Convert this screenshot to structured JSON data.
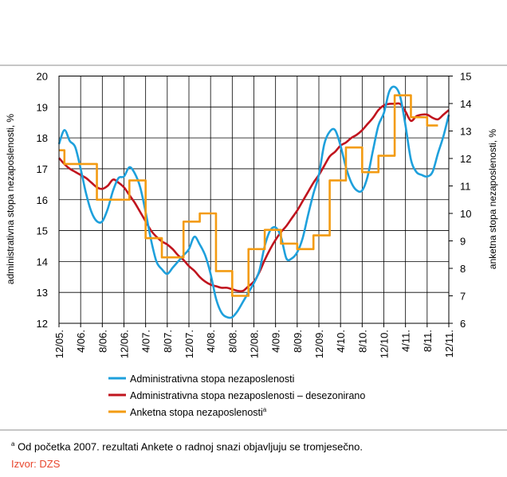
{
  "chart_data": {
    "type": "line",
    "title": "",
    "y_left": {
      "label": "administrativna stopa nezaposlenosti, %",
      "min": 12,
      "max": 20,
      "ticks": [
        20,
        19,
        18,
        17,
        16,
        15,
        14,
        13,
        12
      ]
    },
    "y_right": {
      "label": "anketna stopa nezaposlenosti, %",
      "min": 6,
      "max": 15,
      "ticks": [
        15,
        14,
        13,
        12,
        11,
        10,
        9,
        8,
        7,
        6
      ]
    },
    "x_ticks": [
      "12/05.",
      "4/06.",
      "8/06.",
      "12/06.",
      "4/07.",
      "8/07.",
      "12/07.",
      "4/08.",
      "8/08.",
      "12/08.",
      "4/09.",
      "8/09.",
      "12/09.",
      "4/10.",
      "8/10.",
      "12/10.",
      "4/11.",
      "8/11.",
      "12/11."
    ],
    "grid": true,
    "legend_position": "bottom",
    "series": [
      {
        "name": "Administrativna stopa nezaposlenosti",
        "axis": "left",
        "color": "#1ea0dc",
        "values": [
          17.8,
          18.25,
          17.9,
          17.7,
          17.0,
          16.2,
          15.6,
          15.3,
          15.3,
          15.7,
          16.3,
          16.7,
          16.75,
          17.05,
          16.85,
          16.4,
          15.6,
          14.7,
          14.0,
          13.75,
          13.6,
          13.8,
          14.0,
          14.2,
          14.4,
          14.8,
          14.55,
          14.2,
          13.6,
          12.8,
          12.35,
          12.2,
          12.2,
          12.4,
          12.7,
          13.0,
          13.3,
          13.7,
          14.5,
          15.0,
          15.1,
          14.8,
          14.1,
          14.1,
          14.3,
          14.75,
          15.5,
          16.2,
          16.8,
          17.8,
          18.2,
          18.25,
          17.75,
          17.05,
          16.55,
          16.3,
          16.3,
          16.75,
          17.6,
          18.4,
          18.8,
          19.5,
          19.65,
          19.35,
          18.4,
          17.3,
          16.9,
          16.8,
          16.75,
          16.9,
          17.5,
          18.05,
          18.75
        ]
      },
      {
        "name": "Administrativna stopa nezaposlenosti – desezonirano",
        "axis": "left",
        "color": "#c0141e",
        "values": [
          17.35,
          17.15,
          17.0,
          16.9,
          16.8,
          16.7,
          16.55,
          16.4,
          16.35,
          16.45,
          16.65,
          16.55,
          16.4,
          16.15,
          15.9,
          15.6,
          15.3,
          15.0,
          14.8,
          14.65,
          14.55,
          14.4,
          14.2,
          14.05,
          13.85,
          13.7,
          13.5,
          13.35,
          13.25,
          13.2,
          13.15,
          13.15,
          13.1,
          13.05,
          13.05,
          13.2,
          13.35,
          13.65,
          14.05,
          14.4,
          14.7,
          14.95,
          15.15,
          15.4,
          15.65,
          15.95,
          16.25,
          16.55,
          16.8,
          17.1,
          17.4,
          17.55,
          17.75,
          17.85,
          18.0,
          18.1,
          18.25,
          18.45,
          18.65,
          18.9,
          19.05,
          19.1,
          19.1,
          19.1,
          18.85,
          18.55,
          18.7,
          18.75,
          18.75,
          18.65,
          18.6,
          18.75,
          18.9
        ]
      },
      {
        "name": "Anketna stopa nezaposlenosti",
        "axis": "right",
        "color": "#f39b12",
        "values": [
          12.3,
          11.8,
          11.8,
          11.8,
          11.8,
          11.8,
          11.8,
          10.5,
          10.5,
          10.5,
          10.5,
          10.5,
          10.5,
          11.2,
          11.2,
          11.2,
          9.1,
          9.1,
          9.1,
          8.4,
          8.4,
          8.4,
          8.4,
          9.7,
          9.7,
          9.7,
          10.0,
          10.0,
          10.0,
          7.9,
          7.9,
          7.9,
          7.0,
          7.0,
          7.0,
          8.7,
          8.7,
          8.7,
          9.4,
          9.4,
          9.4,
          8.9,
          8.9,
          8.9,
          8.7,
          8.7,
          8.7,
          9.2,
          9.2,
          9.2,
          11.2,
          11.2,
          11.2,
          12.4,
          12.4,
          12.4,
          11.5,
          11.5,
          11.5,
          12.1,
          12.1,
          12.1,
          14.3,
          14.3,
          14.3,
          13.5,
          13.5,
          13.5,
          13.2,
          13.2,
          13.2
        ]
      }
    ]
  },
  "footnote": {
    "marker": "a",
    "text": " Od početka 2007. rezultati Ankete o radnoj snazi objavljuju se tromjesečno."
  },
  "source": "Izvor: DZS"
}
